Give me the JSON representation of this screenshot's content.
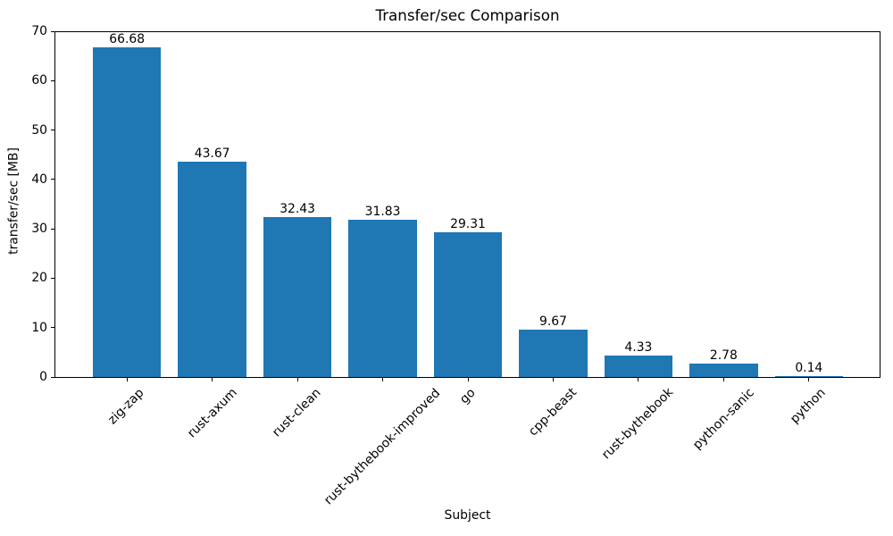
{
  "chart_data": {
    "type": "bar",
    "title": "Transfer/sec Comparison",
    "xlabel": "Subject",
    "ylabel": "transfer/sec [MB]",
    "categories": [
      "zig-zap",
      "rust-axum",
      "rust-clean",
      "rust-bythebook-improved",
      "go",
      "cpp-beast",
      "rust-bythebook",
      "python-sanic",
      "python"
    ],
    "values": [
      66.68,
      43.67,
      32.43,
      31.83,
      29.31,
      9.67,
      4.33,
      2.78,
      0.14
    ],
    "value_labels": [
      "66.68",
      "43.67",
      "32.43",
      "31.83",
      "29.31",
      "9.67",
      "4.33",
      "2.78",
      "0.14"
    ],
    "ylim": [
      0,
      70
    ],
    "yticks": [
      0,
      10,
      20,
      30,
      40,
      50,
      60,
      70
    ],
    "bar_color": "#1f77b4",
    "axis_color": "#000000",
    "text_color": "#000000",
    "background_color": "#ffffff",
    "x_tick_rotation_deg": 45,
    "grid": false,
    "legend": "none"
  }
}
